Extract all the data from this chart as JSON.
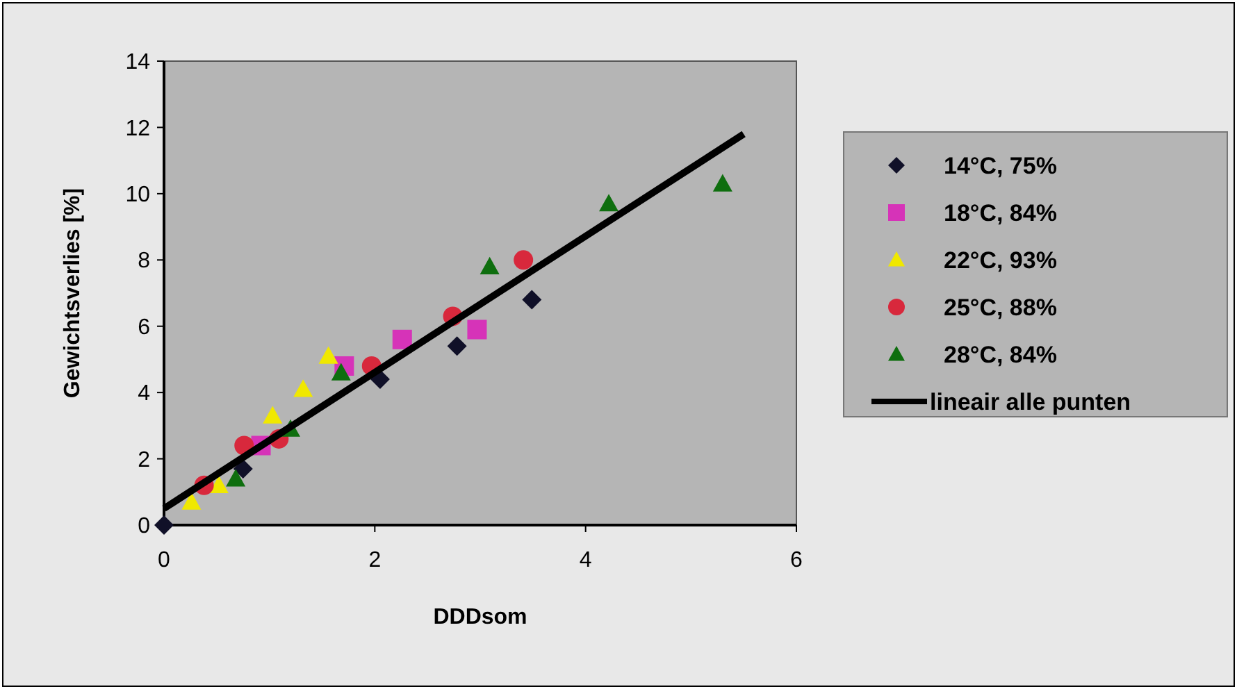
{
  "chart_data": {
    "type": "scatter",
    "xlabel": "DDDsom",
    "ylabel": "Gewichtsverlies [%]",
    "xlim": [
      0,
      6
    ],
    "xticks": [
      0,
      2,
      4,
      6
    ],
    "ylim": [
      0,
      14
    ],
    "yticks": [
      0,
      2,
      4,
      6,
      8,
      10,
      12,
      14
    ],
    "grid": false,
    "legend": "right",
    "series": [
      {
        "name": "14°C, 75%",
        "color": "#101028",
        "marker": "diamond",
        "x": [
          0,
          0.75,
          2.05,
          2.78,
          3.49
        ],
        "values": [
          0,
          1.7,
          4.4,
          5.4,
          6.8
        ]
      },
      {
        "name": "18°C, 84%",
        "color": "#d633b8",
        "marker": "square",
        "x": [
          0.92,
          1.71,
          2.26,
          2.97
        ],
        "values": [
          2.4,
          4.8,
          5.6,
          5.9
        ]
      },
      {
        "name": "22°C, 93%",
        "color": "#f0e800",
        "marker": "triangle",
        "x": [
          0.26,
          0.52,
          1.03,
          1.32,
          1.56
        ],
        "values": [
          0.7,
          1.2,
          3.3,
          4.1,
          5.1
        ]
      },
      {
        "name": "25°C, 88%",
        "color": "#d8283c",
        "marker": "circle",
        "x": [
          0.38,
          0.76,
          1.09,
          1.97,
          2.74,
          3.41
        ],
        "values": [
          1.2,
          2.4,
          2.6,
          4.8,
          6.3,
          8.0
        ]
      },
      {
        "name": "28°C, 84%",
        "color": "#0e6e0e",
        "marker": "triangle",
        "x": [
          0.68,
          1.2,
          1.68,
          3.09,
          4.22,
          5.3
        ],
        "values": [
          1.4,
          2.9,
          4.6,
          7.8,
          9.7,
          10.3
        ]
      },
      {
        "name": "lineair alle punten",
        "type": "line",
        "color": "#000000",
        "marker": "none",
        "line_style": "solid",
        "x": [
          0,
          5.5
        ],
        "values": [
          0.5,
          11.8
        ]
      }
    ]
  }
}
